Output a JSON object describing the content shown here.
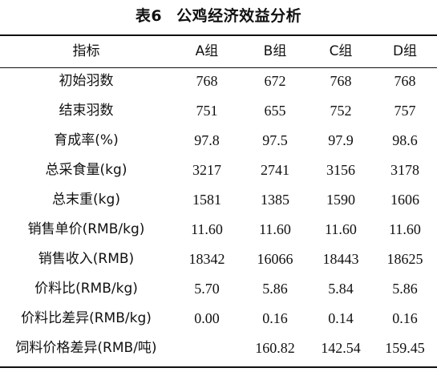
{
  "caption": {
    "number": "表6",
    "title": "公鸡经济效益分析"
  },
  "table": {
    "headers": [
      "指标",
      "A组",
      "B组",
      "C组",
      "D组"
    ],
    "rows": [
      {
        "label": "初始羽数",
        "values": [
          "768",
          "672",
          "768",
          "768"
        ]
      },
      {
        "label": "结束羽数",
        "values": [
          "751",
          "655",
          "752",
          "757"
        ]
      },
      {
        "label": "育成率(%)",
        "values": [
          "97.8",
          "97.5",
          "97.9",
          "98.6"
        ]
      },
      {
        "label": "总采食量(kg)",
        "values": [
          "3217",
          "2741",
          "3156",
          "3178"
        ]
      },
      {
        "label": "总末重(kg)",
        "values": [
          "1581",
          "1385",
          "1590",
          "1606"
        ]
      },
      {
        "label": "销售单价(RMB/kg)",
        "values": [
          "11.60",
          "11.60",
          "11.60",
          "11.60"
        ]
      },
      {
        "label": "销售收入(RMB)",
        "values": [
          "18342",
          "16066",
          "18443",
          "18625"
        ]
      },
      {
        "label": "价料比(RMB/kg)",
        "values": [
          "5.70",
          "5.86",
          "5.84",
          "5.86"
        ]
      },
      {
        "label": "价料比差异(RMB/kg)",
        "values": [
          "0.00",
          "0.16",
          "0.14",
          "0.16"
        ]
      },
      {
        "label": "饲料价格差异(RMB/吨)",
        "values": [
          "",
          "160.82",
          "142.54",
          "159.45"
        ]
      }
    ]
  }
}
